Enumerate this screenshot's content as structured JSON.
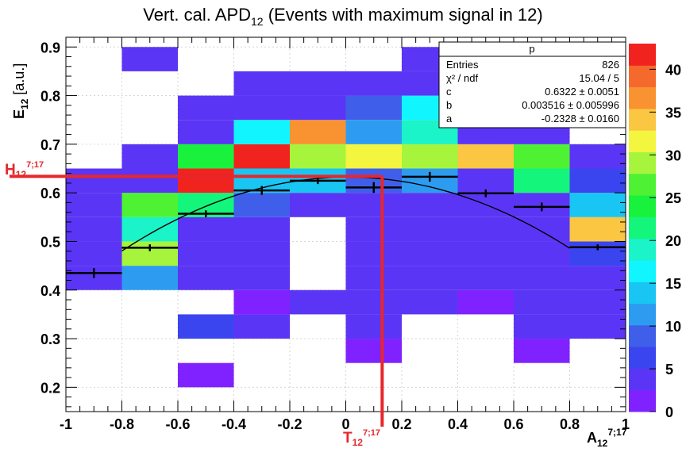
{
  "chart_data": {
    "type": "heatmap",
    "title": {
      "main": "Vert. cal. APD",
      "sub": "12",
      "rest": " (Events with maximum signal in 12)"
    },
    "xlabel": {
      "main": "A",
      "sub": "12",
      "sup": "7;17"
    },
    "ylabel": {
      "main": "E",
      "sub": "12",
      "unit": " [a.u.]"
    },
    "xlim": [
      -1,
      1
    ],
    "ylim": [
      0.15,
      0.92
    ],
    "x_ticks": [
      -1,
      -0.8,
      -0.6,
      -0.4,
      -0.2,
      0,
      0.2,
      0.4,
      0.6,
      0.8,
      1
    ],
    "x_tick_labels": [
      "-1",
      "-0.8",
      "-0.6",
      "-0.4",
      "-0.2",
      "0",
      "0.2",
      "0.4",
      "0.6",
      "0.8",
      "1"
    ],
    "y_ticks": [
      0.2,
      0.3,
      0.4,
      0.5,
      0.6,
      0.7,
      0.8,
      0.9
    ],
    "y_tick_labels": [
      "0.2",
      "0.3",
      "0.4",
      "0.5",
      "0.6",
      "0.7",
      "0.8",
      "0.9"
    ],
    "x_edges": [
      -1,
      -0.8,
      -0.6,
      -0.4,
      -0.2,
      0,
      0.2,
      0.4,
      0.6,
      0.8,
      1
    ],
    "y_edges": [
      0.15,
      0.2,
      0.25,
      0.3,
      0.35,
      0.4,
      0.45,
      0.5,
      0.55,
      0.6,
      0.65,
      0.7,
      0.75,
      0.8,
      0.85,
      0.9
    ],
    "cells": [
      [
        0,
        0,
        0,
        0,
        0,
        0,
        0,
        0,
        0,
        0
      ],
      [
        0,
        0,
        2,
        0,
        0,
        0,
        0,
        0,
        0,
        0
      ],
      [
        0,
        0,
        0,
        0,
        0,
        2,
        0,
        0,
        2,
        0
      ],
      [
        0,
        0,
        6,
        3,
        0,
        3,
        0,
        0,
        3,
        3
      ],
      [
        0,
        0,
        0,
        2,
        3,
        3,
        3,
        2,
        3,
        3
      ],
      [
        3,
        12,
        3,
        3,
        0,
        3,
        5,
        3,
        3,
        3
      ],
      [
        3,
        30,
        3,
        3,
        0,
        3,
        3,
        3,
        3,
        6
      ],
      [
        3,
        20,
        3,
        3,
        0,
        3,
        3,
        3,
        3,
        33
      ],
      [
        3,
        27,
        22,
        9,
        5,
        5,
        5,
        5,
        3,
        15
      ],
      [
        3,
        5,
        41,
        13,
        15,
        9,
        11,
        5,
        22,
        6
      ],
      [
        0,
        5,
        24,
        41,
        29,
        31,
        29,
        34,
        27,
        5
      ],
      [
        0,
        0,
        5,
        16,
        36,
        12,
        20,
        5,
        5,
        0
      ],
      [
        0,
        0,
        3,
        5,
        5,
        9,
        16,
        5,
        3,
        0
      ],
      [
        0,
        0,
        0,
        5,
        5,
        5,
        5,
        5,
        0,
        0
      ],
      [
        0,
        3,
        0,
        0,
        0,
        0,
        3,
        0,
        0,
        0
      ]
    ],
    "profile": [
      {
        "x": -0.9,
        "y": 0.435,
        "err": 0.01
      },
      {
        "x": -0.7,
        "y": 0.487,
        "err": 0.007
      },
      {
        "x": -0.5,
        "y": 0.557,
        "err": 0.007
      },
      {
        "x": -0.3,
        "y": 0.605,
        "err": 0.009
      },
      {
        "x": -0.1,
        "y": 0.625,
        "err": 0.007
      },
      {
        "x": 0.1,
        "y": 0.611,
        "err": 0.011
      },
      {
        "x": 0.3,
        "y": 0.633,
        "err": 0.01
      },
      {
        "x": 0.5,
        "y": 0.599,
        "err": 0.008
      },
      {
        "x": 0.7,
        "y": 0.571,
        "err": 0.009
      },
      {
        "x": 0.9,
        "y": 0.488,
        "err": 0.006
      }
    ],
    "fit": {
      "function": "c + b*x + a*x^2",
      "c": 0.6322,
      "b": 0.003516,
      "a": -0.2328,
      "x_range": [
        -0.8,
        0.8
      ]
    },
    "colorbar": {
      "min": 0,
      "max": 43,
      "ticks": [
        0,
        5,
        10,
        15,
        20,
        25,
        30,
        35,
        40
      ],
      "tick_labels": [
        "0",
        "5",
        "10",
        "15",
        "20",
        "25",
        "30",
        "35",
        "40"
      ],
      "palette": [
        "#7f22ff",
        "#5b35f5",
        "#3a45f0",
        "#3f5fea",
        "#2d9cf0",
        "#19c6f3",
        "#11f5ff",
        "#1bf3c8",
        "#13f57b",
        "#19f23d",
        "#4ef233",
        "#a6f53c",
        "#f3f53f",
        "#fbc641",
        "#f99332",
        "#f56a2c",
        "#f1231f"
      ]
    },
    "stats_box": {
      "title": "p",
      "rows": [
        {
          "label": "Entries",
          "value": "826"
        },
        {
          "label": "χ² / ndf",
          "value": "15.04 / 5"
        },
        {
          "label": "c",
          "value": "0.6322 ± 0.0051"
        },
        {
          "label": "b",
          "value": "0.003516 ± 0.005996"
        },
        {
          "label": "a",
          "value": "-0.2328 ± 0.0160"
        }
      ]
    },
    "annotations": {
      "h_line": {
        "y": 0.634,
        "label_main": "H",
        "label_sub": "12",
        "label_sup": "7;17"
      },
      "v_line": {
        "x": 0.13,
        "label_main": "T",
        "label_sub": "12",
        "label_sup": "7;17"
      },
      "color": "#e8262b"
    }
  }
}
